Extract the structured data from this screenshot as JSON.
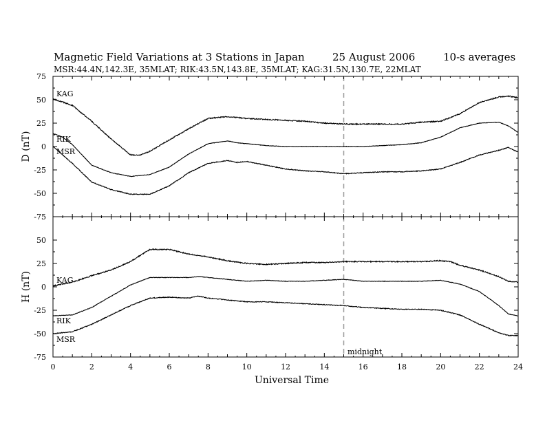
{
  "title": {
    "main": "Magnetic Field Variations at 3 Stations in Japan",
    "date": "25  August  2006",
    "avg": "10-s averages",
    "stations": "MSR:44.4N,142.3E, 35MLAT;  RIK:43.5N,143.8E, 35MLAT;  KAG:31.5N,130.7E, 22MLAT"
  },
  "xlabel": "Universal Time",
  "midnight_label": "midnight",
  "chart_data": [
    {
      "type": "line",
      "panel": "D",
      "ylabel": "D (nT)",
      "ylim": [
        -75,
        75
      ],
      "yticks": [
        75,
        50,
        25,
        0,
        -25,
        -50,
        -75
      ],
      "xlim": [
        0,
        24
      ],
      "xticks": [
        0,
        2,
        4,
        6,
        8,
        10,
        12,
        14,
        16,
        18,
        20,
        22,
        24
      ],
      "midnight_ut": 15,
      "series": [
        {
          "name": "KAG",
          "x": [
            0,
            1,
            2,
            3,
            4,
            4.5,
            5,
            6,
            7,
            8,
            9,
            10,
            11,
            12,
            13,
            14,
            15,
            16,
            17,
            18,
            19,
            20,
            21,
            22,
            23,
            23.5,
            24
          ],
          "values": [
            51,
            44,
            27,
            8,
            -9,
            -9,
            -5,
            7,
            19,
            30,
            32,
            30,
            29,
            28,
            27,
            25,
            24,
            24,
            24,
            24,
            26,
            27,
            35,
            47,
            53,
            54,
            52
          ]
        },
        {
          "name": "RIK",
          "x": [
            0,
            0.5,
            1,
            2,
            3,
            4,
            5,
            6,
            7,
            8,
            9,
            9.5,
            10,
            11,
            12,
            13,
            14,
            15,
            16,
            17,
            18,
            19,
            20,
            21,
            22,
            23,
            23.5,
            24
          ],
          "values": [
            14,
            10,
            2,
            -20,
            -28,
            -32,
            -30,
            -22,
            -8,
            3,
            6,
            4,
            3,
            1,
            0,
            0,
            0,
            0,
            0,
            1,
            2,
            4,
            10,
            20,
            25,
            26,
            22,
            15
          ]
        },
        {
          "name": "MSR",
          "x": [
            0,
            1,
            2,
            3,
            4,
            5,
            6,
            7,
            8,
            9,
            9.5,
            10,
            11,
            12,
            13,
            14,
            15,
            16,
            17,
            18,
            19,
            20,
            21,
            22,
            23,
            23.5,
            24
          ],
          "values": [
            0,
            -18,
            -38,
            -46,
            -51,
            -51,
            -42,
            -28,
            -18,
            -15,
            -17,
            -16,
            -20,
            -24,
            -26,
            -27,
            -29,
            -28,
            -27,
            -27,
            -26,
            -24,
            -17,
            -9,
            -4,
            -1,
            -6
          ]
        }
      ]
    },
    {
      "type": "line",
      "panel": "H",
      "ylabel": "H (nT)",
      "ylim": [
        -75,
        75
      ],
      "yticks": [
        50,
        25,
        0,
        -25,
        -50,
        -75
      ],
      "xlim": [
        0,
        24
      ],
      "xticks": [
        0,
        2,
        4,
        6,
        8,
        10,
        12,
        14,
        16,
        18,
        20,
        22,
        24
      ],
      "midnight_ut": 15,
      "series": [
        {
          "name": "KAG",
          "x": [
            0,
            1,
            2,
            3,
            4,
            5,
            6,
            7,
            8,
            9,
            10,
            11,
            12,
            13,
            14,
            15,
            16,
            17,
            18,
            19,
            20,
            20.5,
            21,
            22,
            23,
            23.5,
            24
          ],
          "values": [
            1,
            5,
            12,
            18,
            27,
            40,
            40,
            35,
            32,
            28,
            25,
            24,
            25,
            26,
            26,
            27,
            27,
            27,
            27,
            27,
            28,
            27,
            23,
            18,
            11,
            6,
            5
          ]
        },
        {
          "name": "RIK",
          "x": [
            0,
            1,
            2,
            3,
            4,
            5,
            6,
            7,
            7.5,
            8,
            9,
            10,
            11,
            12,
            13,
            14,
            15,
            16,
            17,
            18,
            19,
            20,
            21,
            22,
            23,
            23.5,
            24
          ],
          "values": [
            -31,
            -30,
            -22,
            -10,
            2,
            10,
            10,
            10,
            11,
            10,
            8,
            6,
            7,
            6,
            6,
            7,
            8,
            6,
            6,
            6,
            6,
            7,
            3,
            -5,
            -20,
            -29,
            -31
          ]
        },
        {
          "name": "MSR",
          "x": [
            0,
            1,
            2,
            3,
            4,
            5,
            6,
            7,
            7.5,
            8,
            9,
            10,
            11,
            12,
            13,
            14,
            15,
            16,
            17,
            18,
            19,
            20,
            21,
            22,
            23,
            23.5,
            24
          ],
          "values": [
            -50,
            -48,
            -40,
            -30,
            -20,
            -12,
            -11,
            -12,
            -10,
            -12,
            -14,
            -16,
            -16,
            -17,
            -18,
            -19,
            -20,
            -22,
            -23,
            -24,
            -24,
            -25,
            -30,
            -40,
            -49,
            -52,
            -52
          ]
        }
      ]
    }
  ]
}
